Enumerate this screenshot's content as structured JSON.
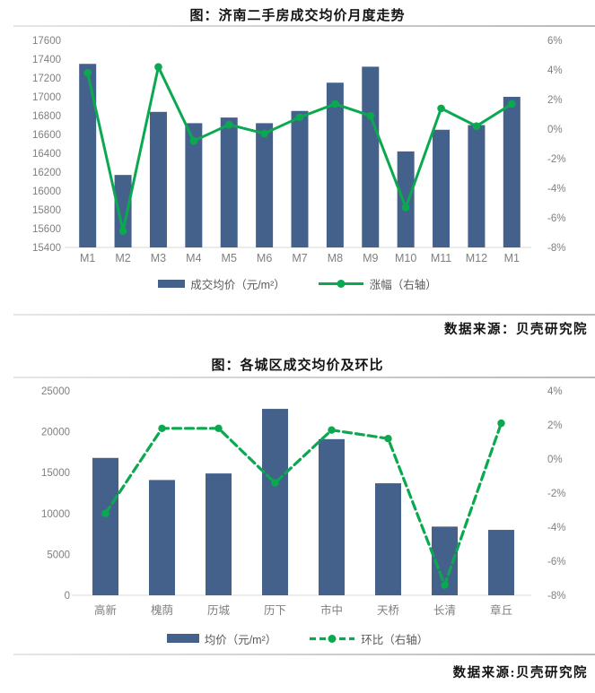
{
  "colors": {
    "bar": "#44618c",
    "line": "#0aa94f",
    "axis_text": "#7f7f7f",
    "axis_line": "#d9d9d9",
    "legend_text": "#595959",
    "title_text": "#141414"
  },
  "sections": [
    {
      "source": "数据来源：贝壳研究院"
    },
    {
      "source": "数据来源:贝壳研究院"
    }
  ],
  "chart_data": [
    {
      "type": "bar+line",
      "title": "图：济南二手房成交均价月度走势",
      "categories": [
        "M1",
        "M2",
        "M3",
        "M4",
        "M5",
        "M6",
        "M7",
        "M8",
        "M9",
        "M10",
        "M11",
        "M12",
        "M1"
      ],
      "series": [
        {
          "name": "成交均价（元/m²）",
          "type": "bar",
          "axis": "left",
          "values": [
            17350,
            16170,
            16840,
            16720,
            16780,
            16720,
            16850,
            17150,
            17320,
            16420,
            16650,
            16700,
            17000
          ]
        },
        {
          "name": "涨幅（右轴）",
          "type": "line",
          "axis": "right",
          "values": [
            3.8,
            -6.9,
            4.2,
            -0.8,
            0.3,
            -0.3,
            0.8,
            1.7,
            0.9,
            -5.3,
            1.4,
            0.2,
            1.7
          ]
        }
      ],
      "left_axis": {
        "min": 15400,
        "max": 17600,
        "step": 200
      },
      "right_axis": {
        "min": -8,
        "max": 6,
        "step": 2,
        "suffix": "%"
      },
      "grid": false,
      "legend_position": "bottom"
    },
    {
      "type": "bar+line",
      "title": "图：各城区成交均价及环比",
      "categories": [
        "高新",
        "槐荫",
        "历城",
        "历下",
        "市中",
        "天桥",
        "长清",
        "章丘"
      ],
      "series": [
        {
          "name": "均价（元/m²）",
          "type": "bar",
          "axis": "left",
          "values": [
            16800,
            14100,
            14900,
            22800,
            19100,
            13700,
            8400,
            8000
          ]
        },
        {
          "name": "环比（右轴）",
          "type": "dashed-line",
          "axis": "right",
          "values": [
            -3.2,
            1.8,
            1.8,
            -1.4,
            1.7,
            1.2,
            -7.4,
            2.1
          ]
        }
      ],
      "left_axis": {
        "min": 0,
        "max": 25000,
        "step": 5000
      },
      "right_axis": {
        "min": -8,
        "max": 4,
        "step": 2,
        "suffix": "%"
      },
      "grid": false,
      "legend_position": "bottom"
    }
  ]
}
